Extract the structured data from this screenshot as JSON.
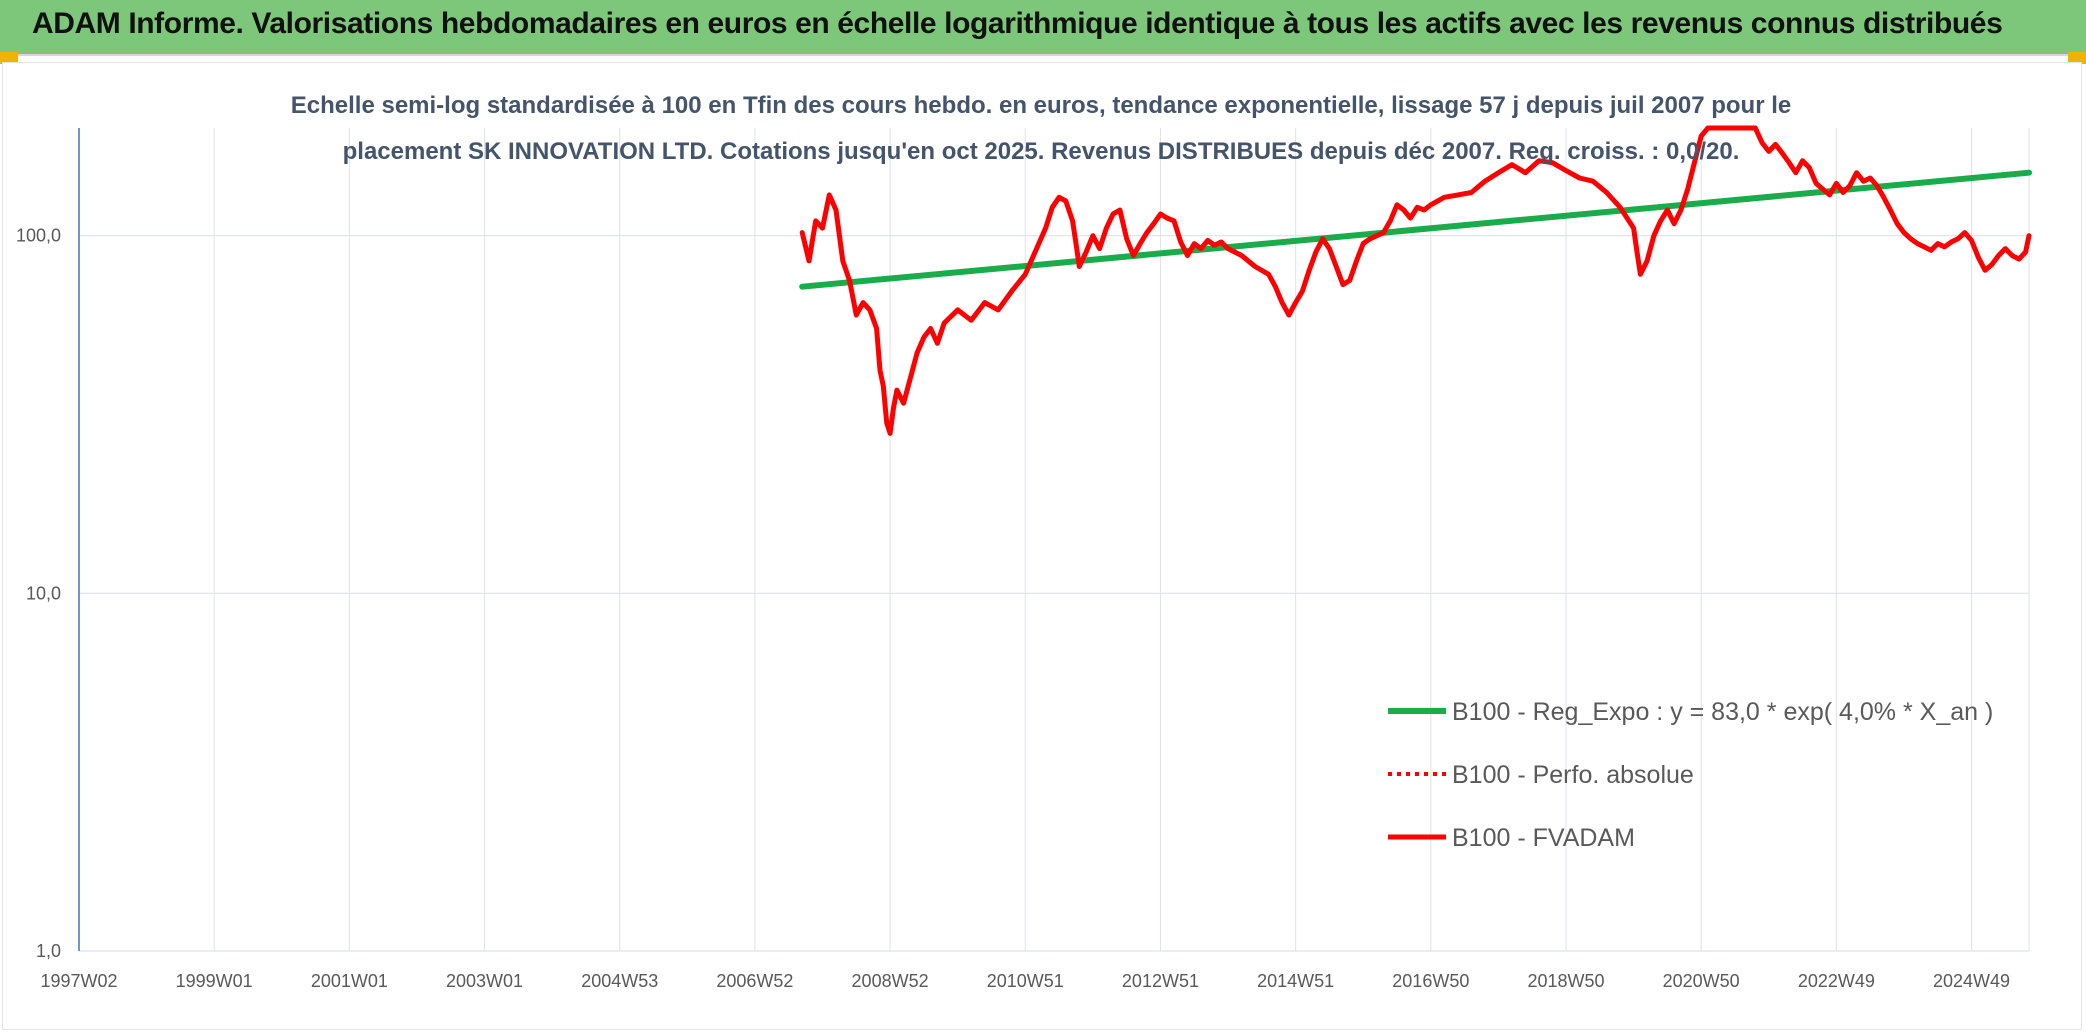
{
  "header": {
    "title": "ADAM Informe. Valorisations hebdomadaires en euros en échelle logarithmique identique à tous les actifs avec les revenus connus distribués"
  },
  "colors": {
    "header_bg": "#7dc77a",
    "corner_accent": "#f2b300",
    "regression": "#1aab4b",
    "fvadam": "#ff0000",
    "perfo_absolue": "#ff0000",
    "grid": "#dde3ea",
    "axis": "#4472c4"
  },
  "chart_data": {
    "type": "line",
    "title_lines": [
      "Echelle semi-log standardisée à 100 en Tfin des cours hebdo. en euros, tendance exponentielle, lissage 57 j depuis juil 2007 pour le",
      "placement SK INNOVATION LTD. Cotations jusqu'en oct 2025. Revenus DISTRIBUES depuis déc 2007. Reg. croiss. : 0,0/20."
    ],
    "y_scale": "log",
    "ylim": [
      1,
      200
    ],
    "y_ticks": [
      {
        "value": 1,
        "label": "1,0"
      },
      {
        "value": 10,
        "label": "10,0"
      },
      {
        "value": 100,
        "label": "100,0"
      }
    ],
    "xlim": [
      1997.0,
      2025.85
    ],
    "x_ticks": [
      {
        "value": 1997.0,
        "label": "1997W02"
      },
      {
        "value": 1999.0,
        "label": "1999W01"
      },
      {
        "value": 2001.0,
        "label": "2001W01"
      },
      {
        "value": 2003.0,
        "label": "2003W01"
      },
      {
        "value": 2005.0,
        "label": "2004W53"
      },
      {
        "value": 2007.0,
        "label": "2006W52"
      },
      {
        "value": 2009.0,
        "label": "2008W52"
      },
      {
        "value": 2011.0,
        "label": "2010W51"
      },
      {
        "value": 2013.0,
        "label": "2012W51"
      },
      {
        "value": 2015.0,
        "label": "2014W51"
      },
      {
        "value": 2017.0,
        "label": "2016W50"
      },
      {
        "value": 2019.0,
        "label": "2018W50"
      },
      {
        "value": 2021.0,
        "label": "2020W50"
      },
      {
        "value": 2023.0,
        "label": "2022W49"
      },
      {
        "value": 2025.0,
        "label": "2024W49"
      }
    ],
    "grid": true,
    "legend_position": "bottom-right",
    "legend": [
      {
        "key": "reg",
        "label": "B100 - Reg_Expo : y = 83,0 * exp( 4,0% *  X_an )",
        "style": "solid-thick"
      },
      {
        "key": "perfo",
        "label": "B100 - Perfo. absolue",
        "style": "dotted"
      },
      {
        "key": "fvadam",
        "label": "B100 - FVADAM",
        "style": "solid"
      }
    ],
    "series": [
      {
        "key": "reg",
        "points": [
          [
            2007.7,
            72
          ],
          [
            2025.85,
            150
          ]
        ]
      },
      {
        "key": "fvadam",
        "points": [
          [
            2007.7,
            102
          ],
          [
            2007.8,
            85
          ],
          [
            2007.9,
            110
          ],
          [
            2008.0,
            105
          ],
          [
            2008.1,
            130
          ],
          [
            2008.2,
            118
          ],
          [
            2008.3,
            85
          ],
          [
            2008.4,
            75
          ],
          [
            2008.5,
            60
          ],
          [
            2008.6,
            65
          ],
          [
            2008.7,
            62
          ],
          [
            2008.8,
            55
          ],
          [
            2008.85,
            42
          ],
          [
            2008.9,
            38
          ],
          [
            2008.95,
            30
          ],
          [
            2009.0,
            28
          ],
          [
            2009.05,
            33
          ],
          [
            2009.1,
            37
          ],
          [
            2009.2,
            34
          ],
          [
            2009.3,
            40
          ],
          [
            2009.4,
            47
          ],
          [
            2009.5,
            52
          ],
          [
            2009.6,
            55
          ],
          [
            2009.7,
            50
          ],
          [
            2009.8,
            57
          ],
          [
            2010.0,
            62
          ],
          [
            2010.2,
            58
          ],
          [
            2010.4,
            65
          ],
          [
            2010.6,
            62
          ],
          [
            2010.8,
            70
          ],
          [
            2011.0,
            78
          ],
          [
            2011.2,
            95
          ],
          [
            2011.3,
            105
          ],
          [
            2011.4,
            120
          ],
          [
            2011.5,
            128
          ],
          [
            2011.6,
            125
          ],
          [
            2011.7,
            110
          ],
          [
            2011.75,
            95
          ],
          [
            2011.8,
            82
          ],
          [
            2011.9,
            90
          ],
          [
            2012.0,
            100
          ],
          [
            2012.1,
            92
          ],
          [
            2012.2,
            105
          ],
          [
            2012.3,
            115
          ],
          [
            2012.4,
            118
          ],
          [
            2012.5,
            98
          ],
          [
            2012.6,
            88
          ],
          [
            2012.7,
            95
          ],
          [
            2012.8,
            102
          ],
          [
            2012.9,
            108
          ],
          [
            2013.0,
            115
          ],
          [
            2013.1,
            112
          ],
          [
            2013.2,
            110
          ],
          [
            2013.3,
            96
          ],
          [
            2013.4,
            88
          ],
          [
            2013.5,
            95
          ],
          [
            2013.6,
            92
          ],
          [
            2013.7,
            97
          ],
          [
            2013.8,
            94
          ],
          [
            2013.9,
            96
          ],
          [
            2014.0,
            92
          ],
          [
            2014.2,
            88
          ],
          [
            2014.4,
            82
          ],
          [
            2014.6,
            78
          ],
          [
            2014.7,
            72
          ],
          [
            2014.8,
            65
          ],
          [
            2014.9,
            60
          ],
          [
            2015.0,
            65
          ],
          [
            2015.1,
            70
          ],
          [
            2015.2,
            80
          ],
          [
            2015.3,
            90
          ],
          [
            2015.4,
            98
          ],
          [
            2015.5,
            92
          ],
          [
            2015.6,
            82
          ],
          [
            2015.7,
            73
          ],
          [
            2015.8,
            75
          ],
          [
            2015.9,
            85
          ],
          [
            2016.0,
            95
          ],
          [
            2016.1,
            98
          ],
          [
            2016.2,
            100
          ],
          [
            2016.3,
            102
          ],
          [
            2016.4,
            110
          ],
          [
            2016.5,
            122
          ],
          [
            2016.6,
            118
          ],
          [
            2016.7,
            112
          ],
          [
            2016.8,
            120
          ],
          [
            2016.9,
            118
          ],
          [
            2017.0,
            122
          ],
          [
            2017.2,
            128
          ],
          [
            2017.4,
            130
          ],
          [
            2017.6,
            132
          ],
          [
            2017.8,
            142
          ],
          [
            2018.0,
            150
          ],
          [
            2018.2,
            158
          ],
          [
            2018.4,
            150
          ],
          [
            2018.6,
            162
          ],
          [
            2018.8,
            160
          ],
          [
            2019.0,
            152
          ],
          [
            2019.2,
            145
          ],
          [
            2019.4,
            142
          ],
          [
            2019.6,
            132
          ],
          [
            2019.8,
            120
          ],
          [
            2020.0,
            105
          ],
          [
            2020.05,
            90
          ],
          [
            2020.1,
            78
          ],
          [
            2020.2,
            85
          ],
          [
            2020.3,
            100
          ],
          [
            2020.4,
            110
          ],
          [
            2020.5,
            118
          ],
          [
            2020.6,
            108
          ],
          [
            2020.7,
            118
          ],
          [
            2020.8,
            135
          ],
          [
            2020.9,
            160
          ],
          [
            2021.0,
            190
          ],
          [
            2021.1,
            205
          ],
          [
            2021.2,
            215
          ],
          [
            2021.4,
            210
          ],
          [
            2021.6,
            208
          ],
          [
            2021.8,
            202
          ],
          [
            2021.9,
            182
          ],
          [
            2022.0,
            172
          ],
          [
            2022.1,
            180
          ],
          [
            2022.2,
            170
          ],
          [
            2022.3,
            160
          ],
          [
            2022.4,
            150
          ],
          [
            2022.5,
            162
          ],
          [
            2022.6,
            155
          ],
          [
            2022.7,
            140
          ],
          [
            2022.8,
            135
          ],
          [
            2022.9,
            130
          ],
          [
            2023.0,
            140
          ],
          [
            2023.1,
            132
          ],
          [
            2023.2,
            138
          ],
          [
            2023.3,
            150
          ],
          [
            2023.4,
            142
          ],
          [
            2023.5,
            145
          ],
          [
            2023.6,
            138
          ],
          [
            2023.7,
            128
          ],
          [
            2023.8,
            118
          ],
          [
            2023.9,
            108
          ],
          [
            2024.0,
            102
          ],
          [
            2024.1,
            98
          ],
          [
            2024.2,
            95
          ],
          [
            2024.3,
            93
          ],
          [
            2024.4,
            91
          ],
          [
            2024.5,
            95
          ],
          [
            2024.6,
            93
          ],
          [
            2024.7,
            96
          ],
          [
            2024.8,
            98
          ],
          [
            2024.9,
            102
          ],
          [
            2025.0,
            97
          ],
          [
            2025.1,
            87
          ],
          [
            2025.2,
            80
          ],
          [
            2025.3,
            83
          ],
          [
            2025.4,
            88
          ],
          [
            2025.5,
            92
          ],
          [
            2025.6,
            88
          ],
          [
            2025.7,
            86
          ],
          [
            2025.8,
            90
          ],
          [
            2025.85,
            100
          ]
        ]
      }
    ]
  }
}
